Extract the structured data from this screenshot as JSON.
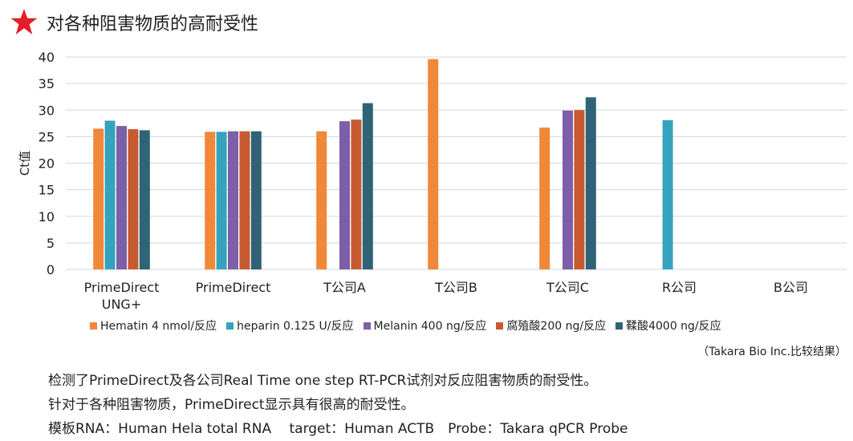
{
  "header": {
    "title": "对各种阻害物质的高耐受性",
    "icon": "star-icon",
    "icon_color": "#e41e26"
  },
  "chart_data": {
    "type": "bar",
    "ylabel": "Ct值",
    "ylim": [
      0,
      40
    ],
    "yticks": [
      0,
      5,
      10,
      15,
      20,
      25,
      30,
      35,
      40
    ],
    "grid": true,
    "legend_position": "bottom",
    "categories": [
      "PrimeDirect UNG+",
      "PrimeDirect",
      "T公司A",
      "T公司B",
      "T公司C",
      "R公司",
      "B公司"
    ],
    "category_labels": [
      [
        "PrimeDirect",
        "UNG+"
      ],
      [
        "PrimeDirect"
      ],
      [
        "T公司A"
      ],
      [
        "T公司B"
      ],
      [
        "T公司C"
      ],
      [
        "R公司"
      ],
      [
        "B公司"
      ]
    ],
    "series": [
      {
        "name": "Hematin 4 nmol/反应",
        "color": "#f0883a",
        "values": [
          26.5,
          25.9,
          26.0,
          39.6,
          26.7,
          null,
          null
        ]
      },
      {
        "name": "heparin 0.125 U/反应",
        "color": "#35a3bd",
        "values": [
          28.0,
          25.9,
          null,
          null,
          null,
          28.1,
          null
        ]
      },
      {
        "name": "Melanin 400 ng/反应",
        "color": "#7d5ea9",
        "values": [
          27.0,
          26.0,
          27.9,
          null,
          29.9,
          null,
          null
        ]
      },
      {
        "name": "腐殖酸200 ng/反应",
        "color": "#c85a32",
        "values": [
          26.4,
          26.0,
          28.2,
          null,
          30.0,
          null,
          null
        ]
      },
      {
        "name": "鞣酸4000 ng/反应",
        "color": "#2f6376",
        "values": [
          26.2,
          26.0,
          31.3,
          null,
          32.4,
          null,
          null
        ]
      }
    ]
  },
  "source_note": "（Takara Bio Inc.比较结果）",
  "notes": [
    "检测了PrimeDirect及各公司Real Time one step RT-PCR试剂对反应阻害物质的耐受性。",
    "针对于各种阻害物质，PrimeDirect显示具有很高的耐受性。",
    "模板RNA：Human Hela total RNA　 target：Human ACTB　Probe：Takara qPCR Probe"
  ]
}
